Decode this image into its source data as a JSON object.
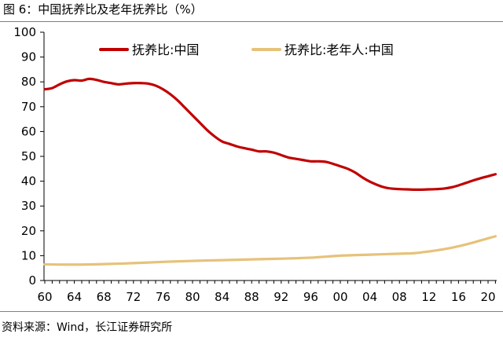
{
  "title": "图 6：中国抚养比及老年抚养比（%）",
  "source": "资料来源：Wind，长江证券研究所",
  "chart_data": {
    "type": "line",
    "xlim": [
      1960,
      2021
    ],
    "ylim": [
      0,
      100
    ],
    "y_ticks": [
      0,
      10,
      20,
      30,
      40,
      50,
      60,
      70,
      80,
      90,
      100
    ],
    "x_ticks": [
      1960,
      1964,
      1968,
      1972,
      1976,
      1980,
      1984,
      1988,
      1992,
      1996,
      2000,
      2004,
      2008,
      2012,
      2016,
      2020
    ],
    "x_tick_labels": [
      "60",
      "64",
      "68",
      "72",
      "76",
      "80",
      "84",
      "88",
      "92",
      "96",
      "00",
      "04",
      "08",
      "12",
      "16",
      "20"
    ],
    "grid": false,
    "legend_position": "top",
    "series": [
      {
        "name": "抚养比:中国",
        "color": "#c00000",
        "x": [
          1960,
          1961,
          1962,
          1963,
          1964,
          1965,
          1966,
          1967,
          1968,
          1969,
          1970,
          1971,
          1972,
          1973,
          1974,
          1975,
          1976,
          1977,
          1978,
          1979,
          1980,
          1981,
          1982,
          1983,
          1984,
          1985,
          1986,
          1987,
          1988,
          1989,
          1990,
          1991,
          1992,
          1993,
          1994,
          1995,
          1996,
          1997,
          1998,
          1999,
          2000,
          2001,
          2002,
          2003,
          2004,
          2005,
          2006,
          2007,
          2008,
          2009,
          2010,
          2011,
          2012,
          2013,
          2014,
          2015,
          2016,
          2017,
          2018,
          2019,
          2020,
          2021
        ],
        "values": [
          77,
          77.5,
          79,
          80.2,
          80.7,
          80.5,
          81.2,
          80.8,
          80,
          79.5,
          79,
          79.3,
          79.5,
          79.5,
          79.3,
          78.5,
          77,
          75,
          72.5,
          69.5,
          66.5,
          63.5,
          60.5,
          58,
          56,
          55,
          54,
          53.3,
          52.7,
          52,
          52,
          51.5,
          50.5,
          49.5,
          49,
          48.5,
          48,
          48,
          47.8,
          47,
          46,
          45,
          43.5,
          41.5,
          39.8,
          38.5,
          37.5,
          37,
          36.8,
          36.7,
          36.6,
          36.6,
          36.7,
          36.8,
          37,
          37.5,
          38.3,
          39.3,
          40.3,
          41.2,
          42,
          42.8
        ]
      },
      {
        "name": "抚养比:老年人:中国",
        "color": "#e6c27a",
        "x": [
          1960,
          1964,
          1968,
          1972,
          1976,
          1980,
          1984,
          1988,
          1992,
          1996,
          2000,
          2004,
          2008,
          2010,
          2012,
          2014,
          2016,
          2018,
          2020,
          2021
        ],
        "values": [
          6.5,
          6.4,
          6.6,
          7,
          7.5,
          7.9,
          8.2,
          8.5,
          8.8,
          9.2,
          10,
          10.4,
          10.8,
          11,
          11.7,
          12.6,
          13.8,
          15.3,
          17,
          17.8
        ]
      }
    ]
  }
}
